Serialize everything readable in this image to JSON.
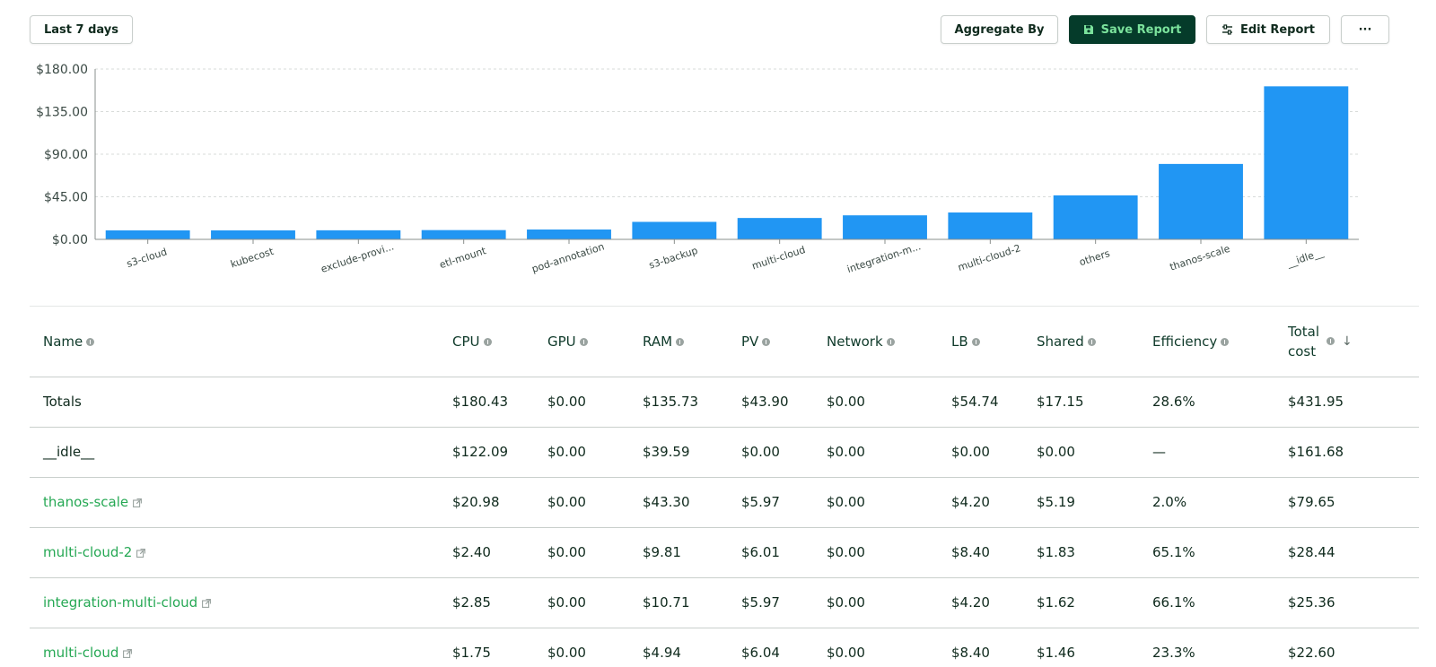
{
  "toolbar": {
    "date_range_label": "Last 7 days",
    "aggregate_label": "Aggregate By",
    "save_label": "Save Report",
    "edit_label": "Edit Report",
    "more_label": "···"
  },
  "colors": {
    "bar": "#2196f3",
    "primary_button": "#053b2a",
    "primary_button_text": "#7be29c",
    "link": "#26a854"
  },
  "chart_data": {
    "type": "bar",
    "categories": [
      "s3-cloud",
      "kubecost",
      "exclude-provi...",
      "etl-mount",
      "pod-annotation",
      "s3-backup",
      "multi-cloud",
      "integration-m...",
      "multi-cloud-2",
      "others",
      "thanos-scale",
      "__idle__"
    ],
    "values": [
      9.5,
      9.5,
      9.6,
      9.8,
      10.4,
      18.5,
      22.6,
      25.4,
      28.4,
      46.5,
      79.7,
      161.7
    ],
    "y_ticks": [
      "$0.00",
      "$45.00",
      "$90.00",
      "$135.00",
      "$180.00"
    ],
    "y_tick_values": [
      0,
      45,
      90,
      135,
      180
    ],
    "ylim": [
      0,
      180
    ],
    "grid": true,
    "title": "",
    "xlabel": "",
    "ylabel": ""
  },
  "table": {
    "headers": {
      "name": "Name",
      "cpu": "CPU",
      "gpu": "GPU",
      "ram": "RAM",
      "pv": "PV",
      "network": "Network",
      "lb": "LB",
      "shared": "Shared",
      "efficiency": "Efficiency",
      "total_line1": "Total",
      "total_line2": "cost",
      "sort_icon": "arrow-down-icon"
    },
    "rows": [
      {
        "name": "Totals",
        "link": false,
        "cpu": "$180.43",
        "gpu": "$0.00",
        "ram": "$135.73",
        "pv": "$43.90",
        "network": "$0.00",
        "lb": "$54.74",
        "shared": "$17.15",
        "efficiency": "28.6%",
        "total": "$431.95"
      },
      {
        "name": "__idle__",
        "link": false,
        "cpu": "$122.09",
        "gpu": "$0.00",
        "ram": "$39.59",
        "pv": "$0.00",
        "network": "$0.00",
        "lb": "$0.00",
        "shared": "$0.00",
        "efficiency": "—",
        "total": "$161.68"
      },
      {
        "name": "thanos-scale",
        "link": true,
        "cpu": "$20.98",
        "gpu": "$0.00",
        "ram": "$43.30",
        "pv": "$5.97",
        "network": "$0.00",
        "lb": "$4.20",
        "shared": "$5.19",
        "efficiency": "2.0%",
        "total": "$79.65"
      },
      {
        "name": "multi-cloud-2",
        "link": true,
        "cpu": "$2.40",
        "gpu": "$0.00",
        "ram": "$9.81",
        "pv": "$6.01",
        "network": "$0.00",
        "lb": "$8.40",
        "shared": "$1.83",
        "efficiency": "65.1%",
        "total": "$28.44"
      },
      {
        "name": "integration-multi-cloud",
        "link": true,
        "cpu": "$2.85",
        "gpu": "$0.00",
        "ram": "$10.71",
        "pv": "$5.97",
        "network": "$0.00",
        "lb": "$4.20",
        "shared": "$1.62",
        "efficiency": "66.1%",
        "total": "$25.36"
      },
      {
        "name": "multi-cloud",
        "link": true,
        "cpu": "$1.75",
        "gpu": "$0.00",
        "ram": "$4.94",
        "pv": "$6.04",
        "network": "$0.00",
        "lb": "$8.40",
        "shared": "$1.46",
        "efficiency": "23.3%",
        "total": "$22.60"
      }
    ]
  }
}
